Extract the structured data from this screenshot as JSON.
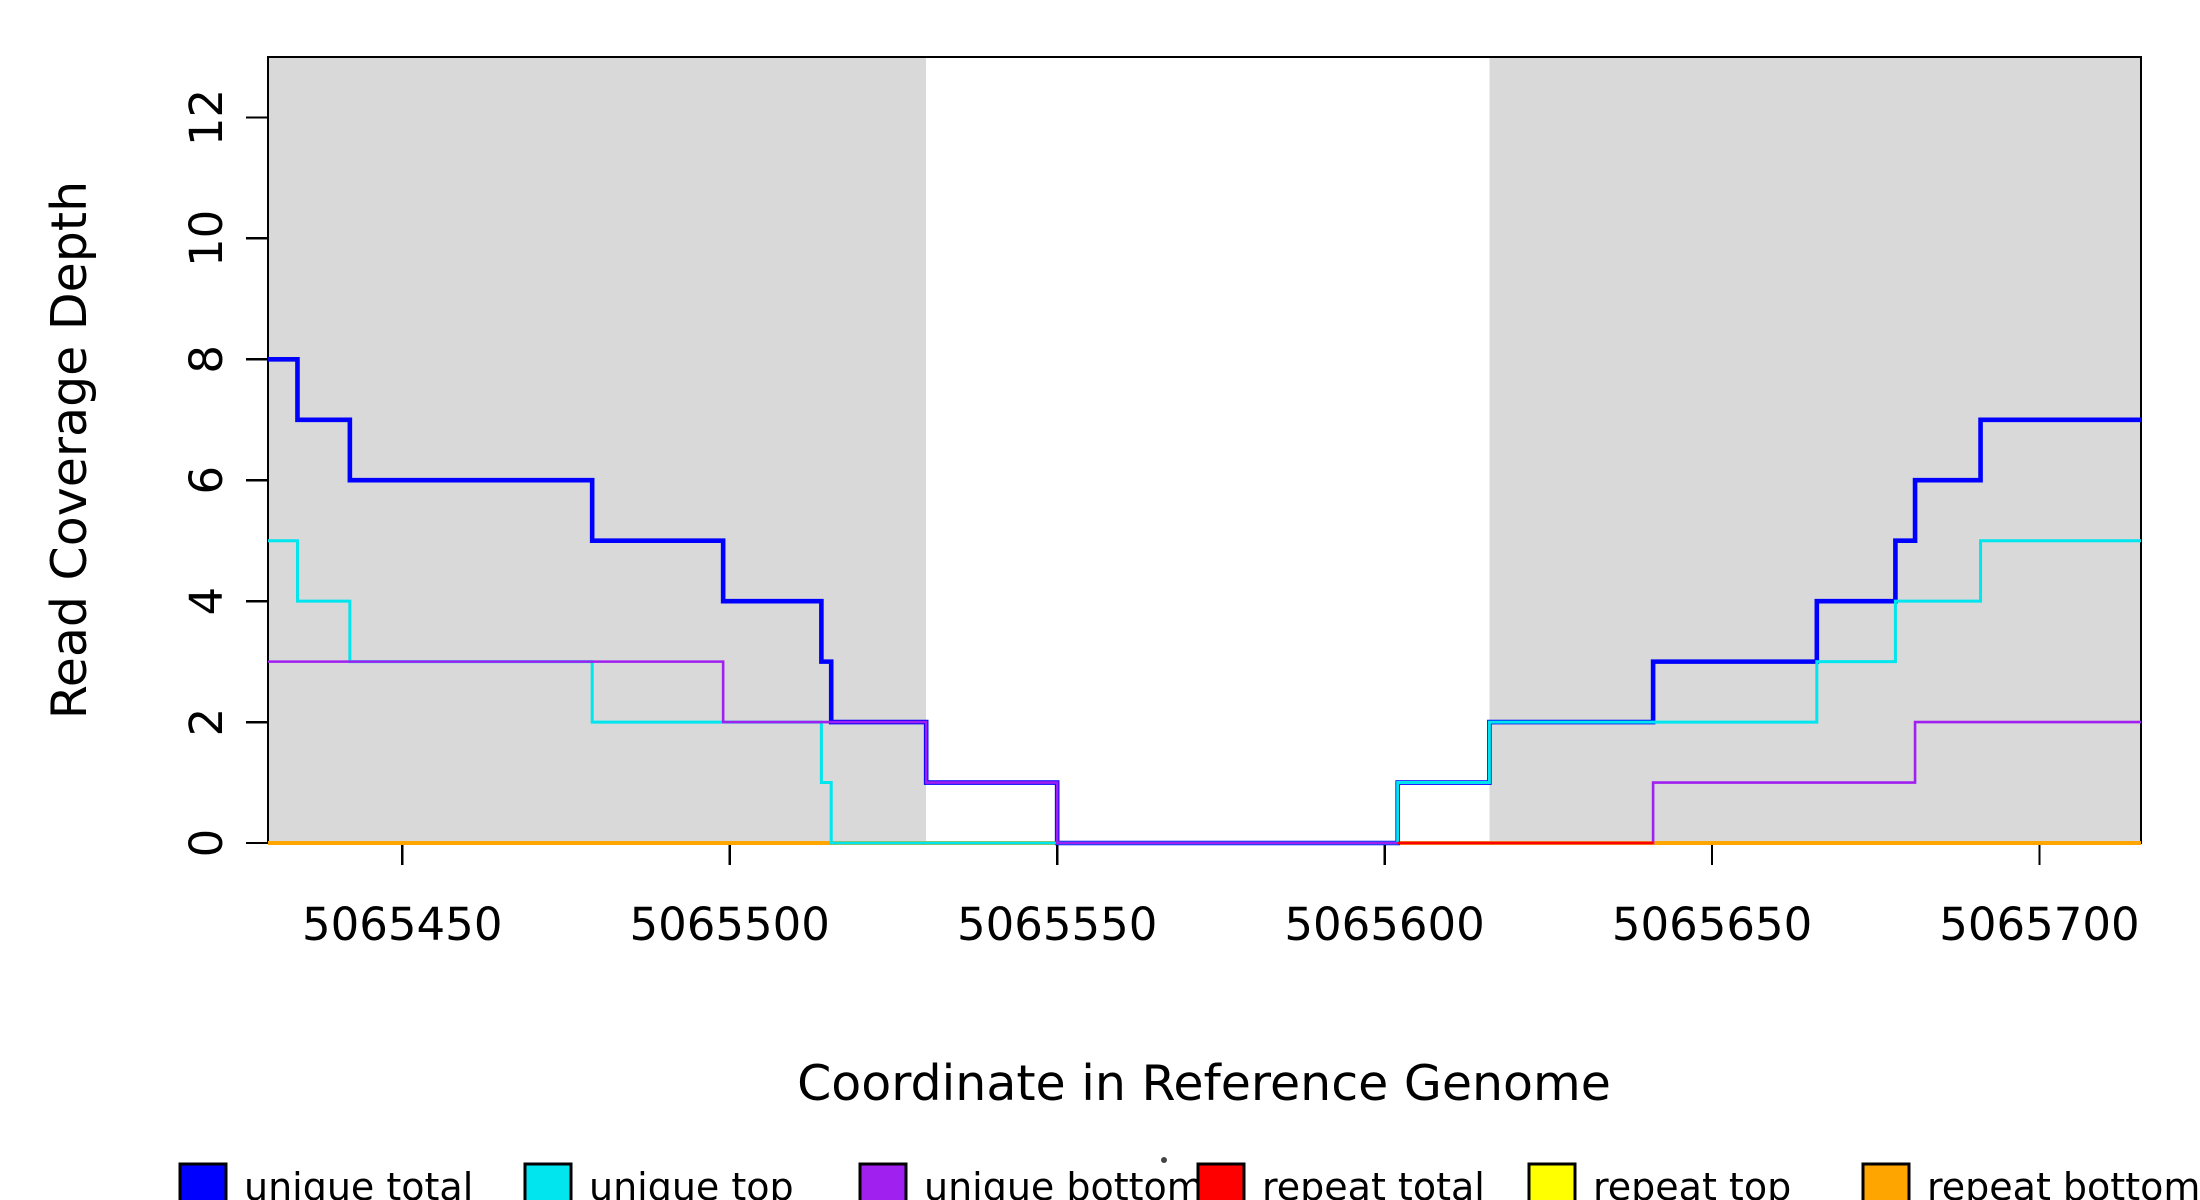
{
  "figure": {
    "background": "#ffffff"
  },
  "chart_data": {
    "type": "line",
    "line_style": "step",
    "title": "",
    "xlabel": "Coordinate in Reference Genome",
    "ylabel": "Read Coverage Depth",
    "xlim": [
      5065429.5,
      5065715.5
    ],
    "ylim": [
      0,
      13
    ],
    "grid": false,
    "axis_color": "#000000",
    "x_ticks": {
      "values": [
        5065450,
        5065500,
        5065550,
        5065600,
        5065650,
        5065700
      ],
      "labels": [
        "5065450",
        "5065500",
        "5065550",
        "5065600",
        "5065650",
        "5065700"
      ]
    },
    "y_ticks": {
      "values": [
        0,
        2,
        4,
        6,
        8,
        10,
        12
      ],
      "labels": [
        "0",
        "2",
        "4",
        "6",
        "8",
        "10",
        "12"
      ]
    },
    "shaded_regions": [
      {
        "name": "shaded-region-left",
        "x1": 5065429.5,
        "x2": 5065530,
        "color": "#d9d9d9"
      },
      {
        "name": "shaded-region-right",
        "x1": 5065616,
        "x2": 5065715.5,
        "color": "#d9d9d9"
      }
    ],
    "series": [
      {
        "name": "unique total",
        "color": "#0000ff",
        "stroke_width": 4.6,
        "steps": [
          [
            5065429.5,
            8
          ],
          [
            5065434,
            7
          ],
          [
            5065442,
            6
          ],
          [
            5065479,
            5
          ],
          [
            5065499,
            4
          ],
          [
            5065514,
            3
          ],
          [
            5065515.5,
            2
          ],
          [
            5065530,
            1
          ],
          [
            5065550,
            0
          ],
          [
            5065602,
            1
          ],
          [
            5065616,
            2
          ],
          [
            5065641,
            3
          ],
          [
            5065666,
            4
          ],
          [
            5065678,
            5
          ],
          [
            5065681,
            6
          ],
          [
            5065691,
            7
          ]
        ]
      },
      {
        "name": "unique top",
        "color": "#00e5ee",
        "stroke_width": 3,
        "steps": [
          [
            5065429.5,
            5
          ],
          [
            5065434,
            4
          ],
          [
            5065442,
            3
          ],
          [
            5065479,
            2
          ],
          [
            5065514,
            1
          ],
          [
            5065515.5,
            0
          ],
          [
            5065602,
            1
          ],
          [
            5065616,
            2
          ],
          [
            5065666,
            3
          ],
          [
            5065678,
            4
          ],
          [
            5065691,
            5
          ]
        ]
      },
      {
        "name": "unique bottom",
        "color": "#a020f0",
        "stroke_width": 2.6,
        "steps": [
          [
            5065429.5,
            3
          ],
          [
            5065499,
            2
          ],
          [
            5065530,
            1
          ],
          [
            5065550,
            0
          ],
          [
            5065641,
            1
          ],
          [
            5065681,
            2
          ]
        ]
      },
      {
        "name": "repeat total",
        "color": "#ff0000",
        "stroke_width": 2.6,
        "steps": [
          [
            5065429.5,
            0
          ]
        ]
      },
      {
        "name": "repeat top",
        "color": "#ffff00",
        "stroke_width": 3,
        "steps": [
          [
            5065429.5,
            0
          ]
        ]
      },
      {
        "name": "repeat bottom",
        "color": "#ffa500",
        "stroke_width": 4,
        "steps": [
          [
            5065429.5,
            0
          ]
        ]
      }
    ],
    "draw_order": [
      "repeat top",
      "repeat total",
      "repeat bottom",
      "unique total",
      "unique top",
      "unique bottom"
    ],
    "baseline_overlays": [
      {
        "name": "repeat total",
        "color": "#ff0000",
        "x1": 5065602,
        "x2": 5065641,
        "y": 0,
        "stroke_width": 2.6
      }
    ],
    "legend_position": "bottom"
  },
  "legend": {
    "items": [
      {
        "label": "unique total",
        "color": "#0000ff"
      },
      {
        "label": "unique top",
        "color": "#00e5ee"
      },
      {
        "label": "unique bottom",
        "color": "#a020f0"
      },
      {
        "label": "repeat total",
        "color": "#ff0000"
      },
      {
        "label": "repeat top",
        "color": "#ffff00"
      },
      {
        "label": "repeat bottom",
        "color": "#ffa500"
      }
    ]
  }
}
